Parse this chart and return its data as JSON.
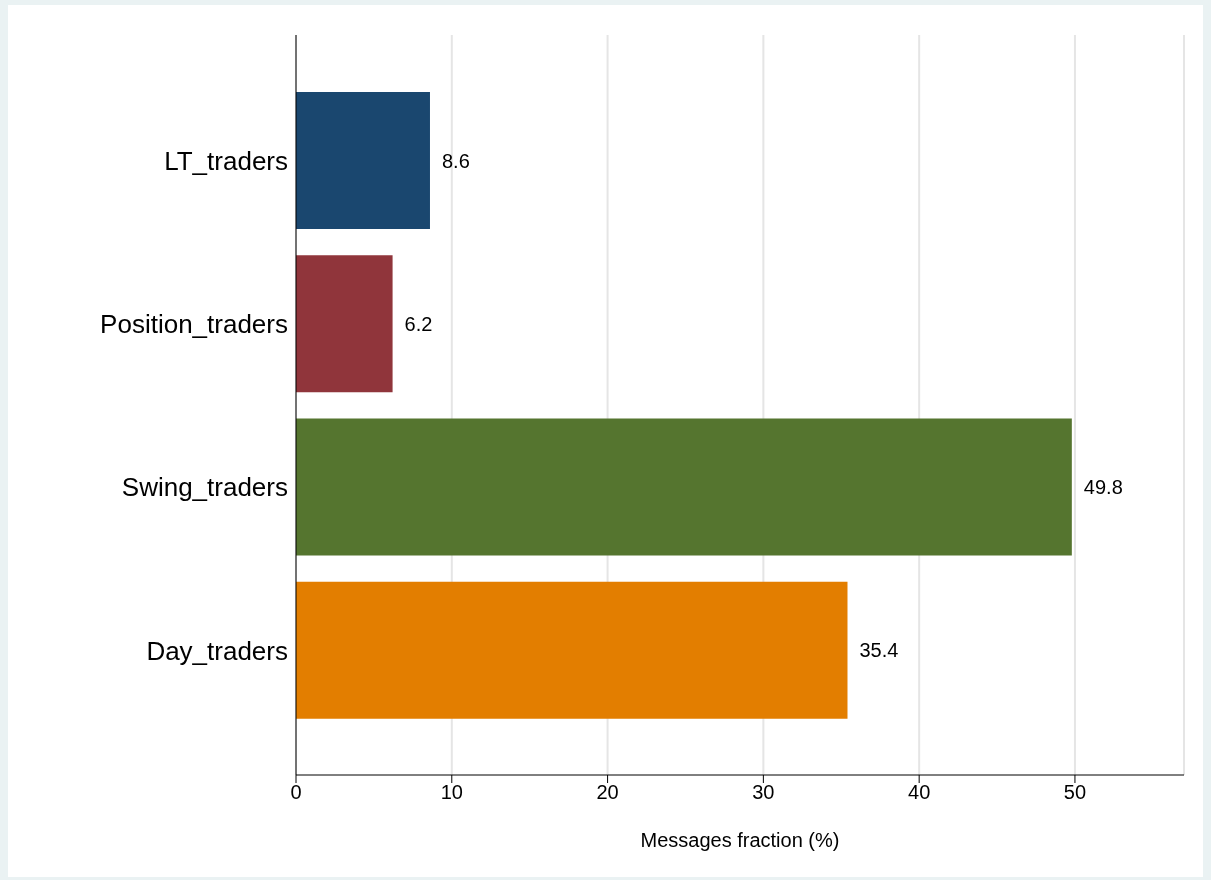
{
  "chart_data": {
    "type": "bar",
    "orientation": "horizontal",
    "categories": [
      "LT_traders",
      "Position_traders",
      "Swing_traders",
      "Day_traders"
    ],
    "values": [
      8.6,
      6.2,
      49.8,
      35.4
    ],
    "colors": [
      "#1a476f",
      "#90353b",
      "#55752f",
      "#e37e00"
    ],
    "xlabel": "Messages fraction (%)",
    "xlim": [
      0,
      57
    ],
    "xticks": [
      0,
      10,
      20,
      30,
      40,
      50
    ],
    "grid": "x",
    "data_labels": true
  }
}
